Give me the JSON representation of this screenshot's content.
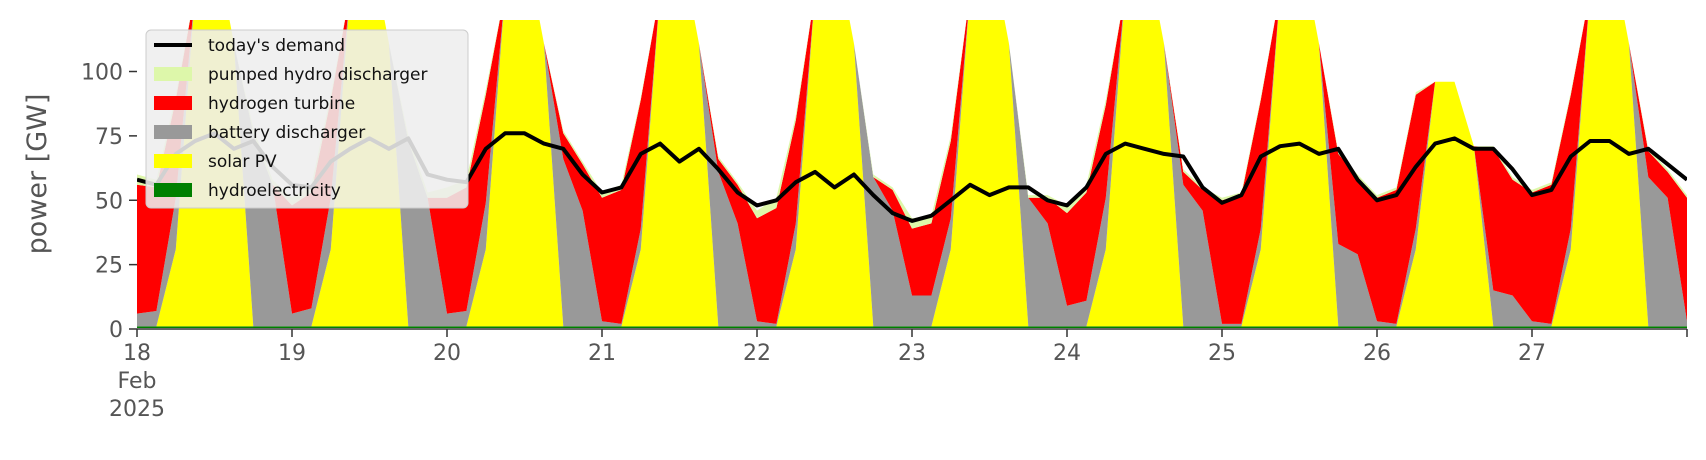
{
  "chart_data": {
    "type": "area",
    "title": "",
    "xlabel": "",
    "ylabel": "power [GW]",
    "ylim": [
      0,
      120
    ],
    "yticks": [
      0,
      25,
      50,
      75,
      100
    ],
    "xlim": [
      "2025-02-18T00:00",
      "2025-02-28T00:00"
    ],
    "xticks": [
      {
        "date": "2025-02-18",
        "lines": [
          "18",
          "Feb",
          "2025"
        ]
      },
      {
        "date": "2025-02-19",
        "lines": [
          "19"
        ]
      },
      {
        "date": "2025-02-20",
        "lines": [
          "20"
        ]
      },
      {
        "date": "2025-02-21",
        "lines": [
          "21"
        ]
      },
      {
        "date": "2025-02-22",
        "lines": [
          "22"
        ]
      },
      {
        "date": "2025-02-23",
        "lines": [
          "23"
        ]
      },
      {
        "date": "2025-02-24",
        "lines": [
          "24"
        ]
      },
      {
        "date": "2025-02-25",
        "lines": [
          "25"
        ]
      },
      {
        "date": "2025-02-26",
        "lines": [
          "26"
        ]
      },
      {
        "date": "2025-02-27",
        "lines": [
          "27"
        ]
      }
    ],
    "grid": false,
    "legend_position": "top-left",
    "x": [
      "2025-02-18T00:00",
      "2025-02-18T03:00",
      "2025-02-18T06:00",
      "2025-02-18T09:00",
      "2025-02-18T12:00",
      "2025-02-18T15:00",
      "2025-02-18T18:00",
      "2025-02-18T21:00",
      "2025-02-19T00:00",
      "2025-02-19T03:00",
      "2025-02-19T06:00",
      "2025-02-19T09:00",
      "2025-02-19T12:00",
      "2025-02-19T15:00",
      "2025-02-19T18:00",
      "2025-02-19T21:00",
      "2025-02-20T00:00",
      "2025-02-20T03:00",
      "2025-02-20T06:00",
      "2025-02-20T09:00",
      "2025-02-20T12:00",
      "2025-02-20T15:00",
      "2025-02-20T18:00",
      "2025-02-20T21:00",
      "2025-02-21T00:00",
      "2025-02-21T03:00",
      "2025-02-21T06:00",
      "2025-02-21T09:00",
      "2025-02-21T12:00",
      "2025-02-21T15:00",
      "2025-02-21T18:00",
      "2025-02-21T21:00",
      "2025-02-22T00:00",
      "2025-02-22T03:00",
      "2025-02-22T06:00",
      "2025-02-22T09:00",
      "2025-02-22T12:00",
      "2025-02-22T15:00",
      "2025-02-22T18:00",
      "2025-02-22T21:00",
      "2025-02-23T00:00",
      "2025-02-23T03:00",
      "2025-02-23T06:00",
      "2025-02-23T09:00",
      "2025-02-23T12:00",
      "2025-02-23T15:00",
      "2025-02-23T18:00",
      "2025-02-23T21:00",
      "2025-02-24T00:00",
      "2025-02-24T03:00",
      "2025-02-24T06:00",
      "2025-02-24T09:00",
      "2025-02-24T12:00",
      "2025-02-24T15:00",
      "2025-02-24T18:00",
      "2025-02-24T21:00",
      "2025-02-25T00:00",
      "2025-02-25T03:00",
      "2025-02-25T06:00",
      "2025-02-25T09:00",
      "2025-02-25T12:00",
      "2025-02-25T15:00",
      "2025-02-25T18:00",
      "2025-02-25T21:00",
      "2025-02-26T00:00",
      "2025-02-26T03:00",
      "2025-02-26T06:00",
      "2025-02-26T09:00",
      "2025-02-26T12:00",
      "2025-02-26T15:00",
      "2025-02-26T18:00",
      "2025-02-26T21:00",
      "2025-02-27T00:00",
      "2025-02-27T03:00",
      "2025-02-27T06:00",
      "2025-02-27T09:00",
      "2025-02-27T12:00",
      "2025-02-27T15:00",
      "2025-02-27T18:00",
      "2025-02-27T21:00",
      "2025-02-28T00:00"
    ],
    "series": [
      {
        "name": "hydroelectricity",
        "color": "#008000",
        "values": [
          1,
          1,
          1,
          1,
          1,
          1,
          1,
          1,
          1,
          1,
          1,
          1,
          1,
          1,
          1,
          1,
          1,
          1,
          1,
          1,
          1,
          1,
          1,
          1,
          1,
          1,
          1,
          1,
          1,
          1,
          1,
          1,
          1,
          1,
          1,
          1,
          1,
          1,
          1,
          1,
          1,
          1,
          1,
          1,
          1,
          1,
          1,
          1,
          1,
          1,
          1,
          1,
          1,
          1,
          1,
          1,
          1,
          1,
          1,
          1,
          1,
          1,
          1,
          1,
          1,
          1,
          1,
          1,
          1,
          1,
          1,
          1,
          1,
          1,
          1,
          1,
          1,
          1,
          1,
          1,
          1
        ]
      },
      {
        "name": "solar PV",
        "color": "#ffff00",
        "values": [
          0,
          0,
          30,
          130,
          150,
          110,
          0,
          0,
          0,
          0,
          30,
          130,
          150,
          110,
          0,
          0,
          0,
          0,
          30,
          130,
          150,
          110,
          0,
          0,
          0,
          0,
          30,
          130,
          150,
          110,
          0,
          0,
          0,
          0,
          30,
          130,
          150,
          110,
          0,
          0,
          0,
          0,
          30,
          130,
          150,
          110,
          0,
          0,
          0,
          0,
          30,
          130,
          150,
          110,
          0,
          0,
          0,
          0,
          30,
          130,
          150,
          110,
          0,
          0,
          0,
          0,
          30,
          95,
          95,
          70,
          0,
          0,
          0,
          0,
          30,
          130,
          150,
          110,
          0,
          0,
          0
        ]
      },
      {
        "name": "battery discharger",
        "color": "#999999",
        "values": [
          5,
          6,
          20,
          0,
          0,
          0,
          75,
          55,
          5,
          7,
          20,
          0,
          0,
          0,
          72,
          50,
          5,
          6,
          18,
          0,
          0,
          0,
          65,
          45,
          2,
          1,
          8,
          0,
          0,
          0,
          60,
          40,
          2,
          1,
          10,
          0,
          0,
          0,
          58,
          45,
          12,
          12,
          12,
          0,
          0,
          0,
          50,
          40,
          8,
          10,
          20,
          0,
          0,
          0,
          55,
          45,
          1,
          1,
          8,
          0,
          0,
          0,
          32,
          28,
          2,
          1,
          8,
          0,
          0,
          0,
          14,
          12,
          2,
          1,
          8,
          0,
          0,
          0,
          58,
          50,
          2
        ]
      },
      {
        "name": "hydrogen turbine",
        "color": "#ff0000",
        "values": [
          50,
          48,
          38,
          0,
          0,
          0,
          0,
          0,
          42,
          45,
          38,
          0,
          0,
          0,
          0,
          0,
          45,
          48,
          42,
          0,
          0,
          0,
          10,
          18,
          48,
          52,
          50,
          0,
          0,
          0,
          5,
          15,
          40,
          45,
          40,
          0,
          0,
          0,
          0,
          8,
          26,
          28,
          30,
          0,
          0,
          0,
          0,
          10,
          36,
          42,
          36,
          0,
          0,
          0,
          5,
          8,
          48,
          50,
          50,
          0,
          0,
          0,
          35,
          30,
          48,
          52,
          52,
          0,
          0,
          0,
          55,
          45,
          50,
          54,
          52,
          0,
          0,
          0,
          10,
          10,
          48
        ]
      },
      {
        "name": "pumped hydro discharger",
        "color": "#ddf7aa",
        "values": [
          4,
          3,
          2,
          0,
          0,
          0,
          2,
          2,
          3,
          3,
          2,
          0,
          0,
          0,
          2,
          2,
          4,
          3,
          2,
          0,
          0,
          0,
          1,
          1,
          2,
          2,
          1,
          0,
          0,
          0,
          1,
          1,
          3,
          4,
          2,
          0,
          0,
          0,
          1,
          1,
          4,
          3,
          2,
          0,
          0,
          0,
          1,
          1,
          3,
          3,
          2,
          0,
          0,
          0,
          1,
          1,
          1,
          1,
          1,
          0,
          0,
          0,
          1,
          1,
          1,
          1,
          1,
          0,
          0,
          0,
          1,
          1,
          1,
          1,
          1,
          0,
          0,
          0,
          1,
          1,
          1
        ]
      }
    ],
    "demand": {
      "name": "today's demand",
      "color": "#000000",
      "values": [
        58,
        56,
        68,
        73,
        76,
        70,
        73,
        63,
        56,
        55,
        65,
        70,
        74,
        70,
        74,
        60,
        58,
        57,
        70,
        76,
        76,
        72,
        70,
        60,
        53,
        55,
        68,
        72,
        65,
        70,
        62,
        53,
        48,
        50,
        57,
        61,
        55,
        60,
        52,
        45,
        42,
        44,
        50,
        56,
        52,
        55,
        55,
        50,
        48,
        55,
        68,
        72,
        70,
        68,
        67,
        55,
        49,
        52,
        67,
        71,
        72,
        68,
        70,
        58,
        50,
        52,
        63,
        72,
        74,
        70,
        70,
        62,
        52,
        54,
        67,
        73,
        73,
        68,
        70,
        64,
        58
      ]
    },
    "legend": [
      {
        "label": "today's demand",
        "color": "#000000",
        "kind": "line"
      },
      {
        "label": "pumped hydro discharger",
        "color": "#ddf7aa",
        "kind": "patch"
      },
      {
        "label": "hydrogen turbine",
        "color": "#ff0000",
        "kind": "patch"
      },
      {
        "label": "battery discharger",
        "color": "#999999",
        "kind": "patch"
      },
      {
        "label": "solar PV",
        "color": "#ffff00",
        "kind": "patch"
      },
      {
        "label": "hydroelectricity",
        "color": "#008000",
        "kind": "patch"
      }
    ]
  }
}
